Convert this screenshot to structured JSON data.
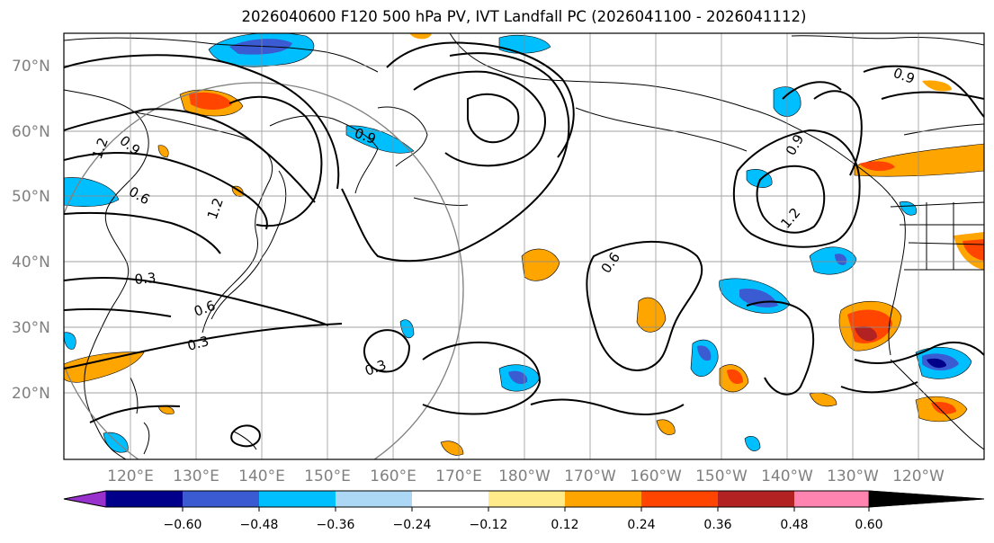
{
  "title": "2026040600 F120 500 hPa PV, IVT Landfall PC (2026041100 - 2026041112)",
  "lat_labels": [
    "70°N",
    "60°N",
    "50°N",
    "40°N",
    "30°N",
    "20°N"
  ],
  "lon_labels": [
    "120°E",
    "130°E",
    "140°E",
    "150°E",
    "160°E",
    "170°E",
    "180°W",
    "170°W",
    "160°W",
    "150°W",
    "140°W",
    "130°W",
    "120°W"
  ],
  "colorbar": {
    "ticks": [
      "−0.60",
      "−0.48",
      "−0.36",
      "−0.24",
      "−0.12",
      "0.12",
      "0.24",
      "0.36",
      "0.48",
      "0.60"
    ],
    "colors": [
      "#9932cc",
      "#00008b",
      "#3a5bd1",
      "#00bfff",
      "#add8f5",
      "#ffffff",
      "#ffeb8a",
      "#ffa500",
      "#ff4500",
      "#b22222",
      "#ff85b0"
    ]
  },
  "contour_labels": [
    "0.9",
    "1.2",
    "0.9",
    "0.6",
    "1.2",
    "0.3",
    "0.6",
    "0.3",
    "0.3",
    "0.6",
    "0.9",
    "1.2",
    "0.9"
  ]
}
